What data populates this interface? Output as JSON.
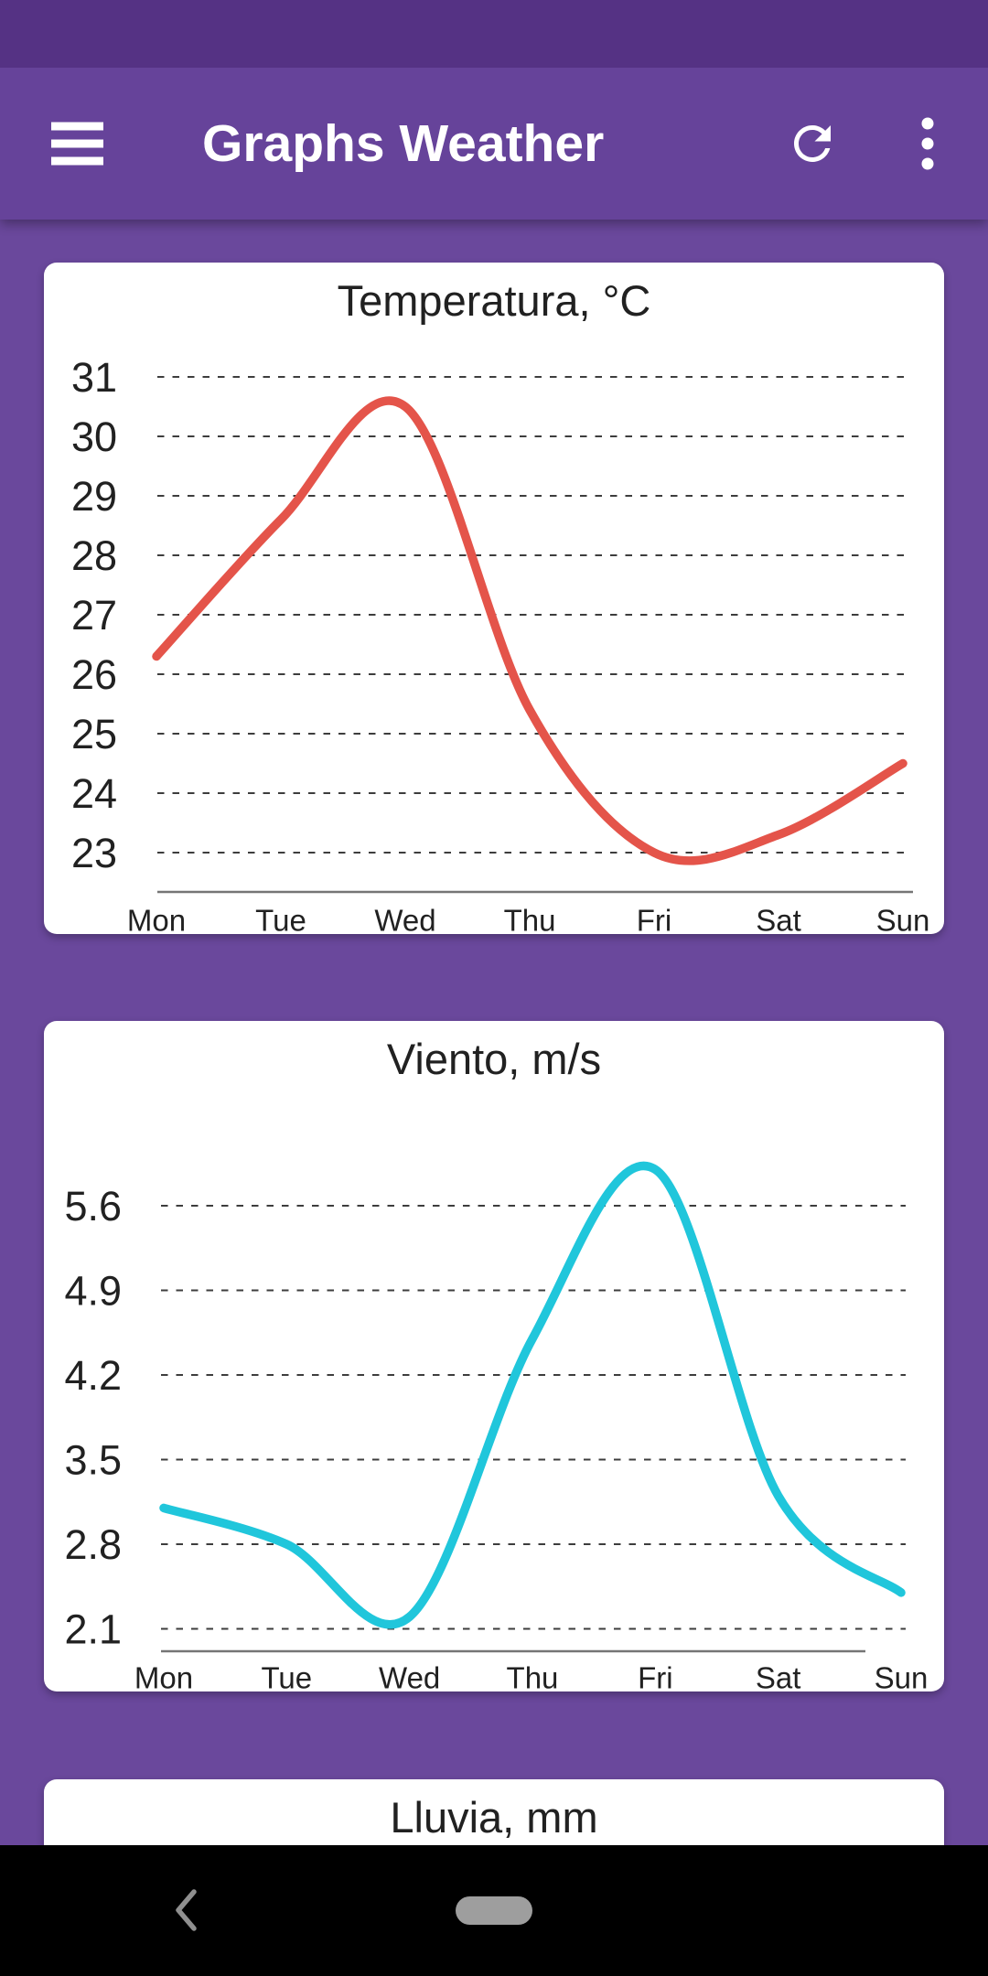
{
  "app": {
    "title": "Graphs Weather"
  },
  "toolbar": {
    "title": "Graphs Weather",
    "menu_icon": "hamburger-menu",
    "refresh_icon": "refresh",
    "overflow_icon": "three-dot-overflow"
  },
  "theme": {
    "status_bar": "#553284",
    "app_bar": "#66439a",
    "background": "#6a489c",
    "card": "#ffffff",
    "chart_text": "#212121",
    "grid_line": "#3d3d3d",
    "axis_line": "#757575",
    "nav_bar": "#000000",
    "nav_icon": "#8f8f8f",
    "home_pill": "#9e9e9e"
  },
  "chart_data": [
    {
      "type": "line",
      "title": "Temperatura, °C",
      "categories": [
        "Mon",
        "Tue",
        "Wed",
        "Thu",
        "Fri",
        "Sat",
        "Sun"
      ],
      "values": [
        26.3,
        28.6,
        30.5,
        25.4,
        23.0,
        23.3,
        24.5
      ],
      "y_ticks": [
        31,
        30,
        29,
        28,
        27,
        26,
        25,
        24,
        23
      ],
      "y_tick_labels": [
        "31",
        "30",
        "29",
        "28",
        "27",
        "26",
        "25",
        "24",
        "23"
      ],
      "ylim": [
        22.6,
        31.8
      ],
      "line_color": "#e4544a",
      "grid": "dashed horizontal",
      "legend": false
    },
    {
      "type": "line",
      "title": "Viento, m/s",
      "categories": [
        "Mon",
        "Tue",
        "Wed",
        "Thu",
        "Fri",
        "Sat",
        "Sun"
      ],
      "values": [
        3.1,
        2.8,
        2.2,
        4.5,
        5.9,
        3.2,
        2.4
      ],
      "y_ticks": [
        5.6,
        4.9,
        4.2,
        3.5,
        2.8,
        2.1
      ],
      "y_tick_labels": [
        "5.6",
        "4.9",
        "4.2",
        "3.5",
        "2.8",
        "2.1"
      ],
      "ylim": [
        1.7,
        6.3
      ],
      "line_color": "#20c6db",
      "grid": "dashed horizontal",
      "legend": false
    },
    {
      "type": "line",
      "title": "Lluvia, mm",
      "note": "card cut off at bottom of screen; only title visible"
    }
  ],
  "nav_bar": {
    "back_icon": "back-chevron",
    "home_icon": "home-pill"
  }
}
